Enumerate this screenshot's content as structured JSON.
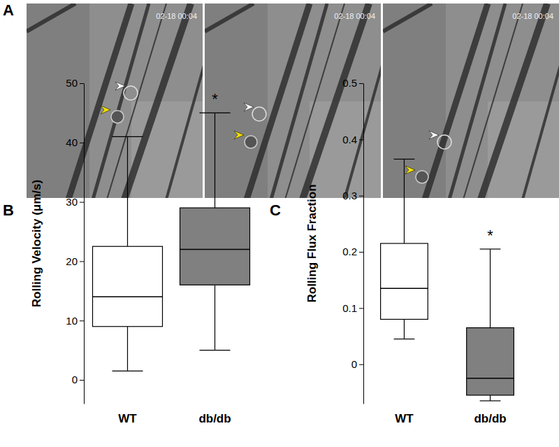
{
  "panel_labels": [
    "A",
    "B",
    "C"
  ],
  "images": [
    {
      "timestamp": "02-18 00:04"
    },
    {
      "timestamp": "02-18 00:04"
    },
    {
      "timestamp": "02-18 00:04"
    }
  ],
  "chart_data": [
    {
      "type": "box",
      "y_label": "Rolling Velocity (μm/s)",
      "categories": [
        "WT",
        "db/db"
      ],
      "boxes": [
        {
          "min": 1.5,
          "q1": 9,
          "median": 14,
          "q3": 22.5,
          "max": 41
        },
        {
          "min": 5,
          "q1": 16,
          "median": 22,
          "q3": 29,
          "max": 45
        }
      ],
      "colors": [
        "#ffffff",
        "#808080"
      ],
      "ylim": [
        -4,
        50
      ],
      "yticks": [
        0,
        10,
        20,
        30,
        40,
        50
      ],
      "annotations": [
        {
          "category": "db/db",
          "text": "*"
        }
      ]
    },
    {
      "type": "box",
      "y_label": "Rolling Flux Fraction",
      "categories": [
        "WT",
        "db/db"
      ],
      "boxes": [
        {
          "min": 0.045,
          "q1": 0.08,
          "median": 0.135,
          "q3": 0.215,
          "max": 0.365
        },
        {
          "min": -0.065,
          "q1": -0.055,
          "median": -0.025,
          "q3": 0.065,
          "max": 0.205
        }
      ],
      "colors": [
        "#ffffff",
        "#808080"
      ],
      "ylim": [
        -0.07,
        0.5
      ],
      "yticks": [
        0,
        0.1,
        0.2,
        0.3,
        0.4,
        0.5
      ],
      "annotations": [
        {
          "category": "db/db",
          "text": "*"
        }
      ]
    }
  ]
}
